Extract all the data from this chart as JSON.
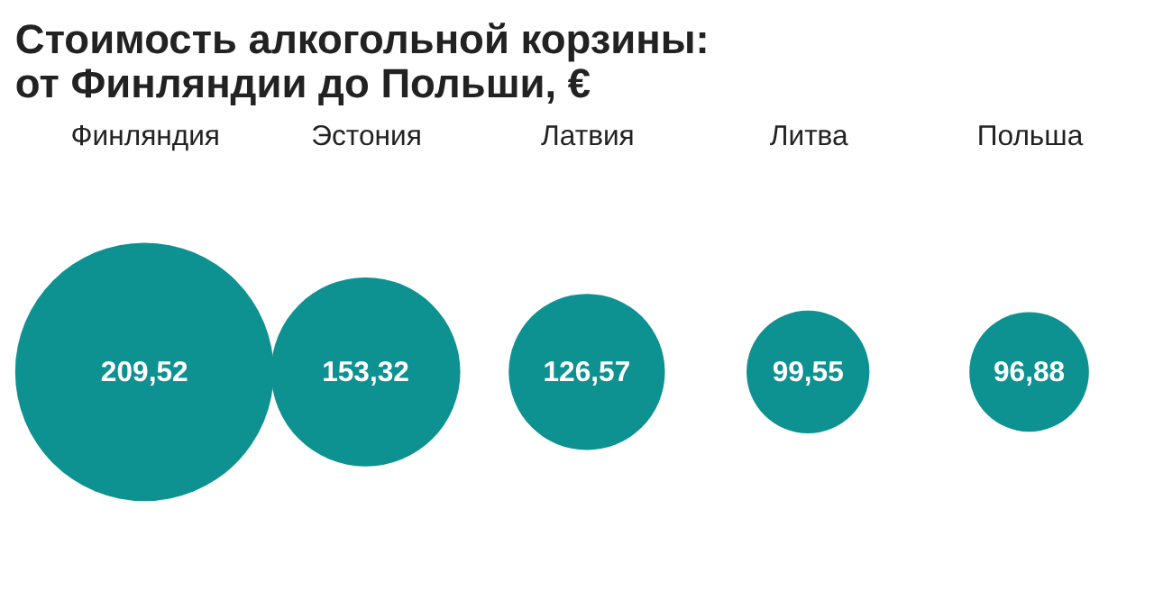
{
  "chart_data": {
    "type": "other",
    "title": "Стоимость алкогольной корзины:\nот Финляндии до Польши, €",
    "categories": [
      "Финляндия",
      "Эстония",
      "Латвия",
      "Литва",
      "Польша"
    ],
    "values": [
      209.52,
      153.32,
      126.57,
      99.55,
      96.88
    ],
    "color": "#0e9191",
    "value_labels": [
      "209,52",
      "153,32",
      "126,57",
      "99,55",
      "96,88"
    ]
  }
}
